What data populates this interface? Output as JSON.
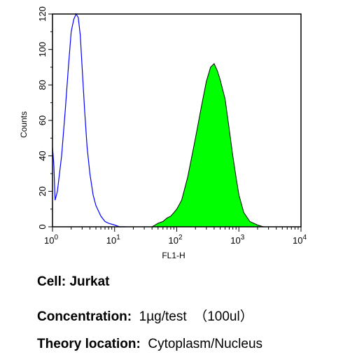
{
  "chart_data": {
    "type": "area",
    "title": "",
    "xlabel": "FL1-H",
    "ylabel": "Counts",
    "x_scale": "log",
    "xlim": [
      1,
      10000
    ],
    "ylim": [
      0,
      120
    ],
    "x_ticks": [
      {
        "base": "10",
        "exp": "0",
        "value": 1
      },
      {
        "base": "10",
        "exp": "1",
        "value": 10
      },
      {
        "base": "10",
        "exp": "2",
        "value": 100
      },
      {
        "base": "10",
        "exp": "3",
        "value": 1000
      },
      {
        "base": "10",
        "exp": "4",
        "value": 10000
      }
    ],
    "y_ticks": [
      "0",
      "20",
      "40",
      "60",
      "80",
      "100",
      "120"
    ],
    "grid": false,
    "legend": "none",
    "series": [
      {
        "style": "filled",
        "color": "#00ff00",
        "x": [
          40,
          50,
          60,
          70,
          80,
          90,
          100,
          120,
          150,
          180,
          200,
          250,
          300,
          350,
          400,
          450,
          500,
          600,
          700,
          800,
          900,
          1000,
          1200,
          1500,
          2000,
          2500
        ],
        "y": [
          0,
          2,
          3,
          5,
          6,
          8,
          10,
          15,
          28,
          42,
          50,
          68,
          82,
          90,
          92,
          88,
          83,
          72,
          55,
          40,
          28,
          18,
          8,
          3,
          1,
          0
        ]
      },
      {
        "style": "outline",
        "color": "#0000ff",
        "x": [
          1,
          1.05,
          1.1,
          1.2,
          1.4,
          1.6,
          1.8,
          2.0,
          2.2,
          2.4,
          2.6,
          2.8,
          3.0,
          3.3,
          3.6,
          4.0,
          4.5,
          5,
          6,
          7,
          8,
          10,
          12,
          15
        ],
        "y": [
          45,
          35,
          15,
          20,
          40,
          65,
          90,
          110,
          117,
          120,
          118,
          108,
          90,
          65,
          45,
          30,
          18,
          12,
          6,
          3,
          2,
          1,
          0,
          0
        ]
      }
    ]
  },
  "captions": {
    "cell": {
      "label": "Cell:",
      "value": " Jurkat"
    },
    "concentration": {
      "label": "Concentration:",
      "value": "  1µg/test  （100ul）"
    },
    "theory": {
      "label": "Theory location:",
      "value": "  Cytoplasm/Nucleus"
    }
  }
}
